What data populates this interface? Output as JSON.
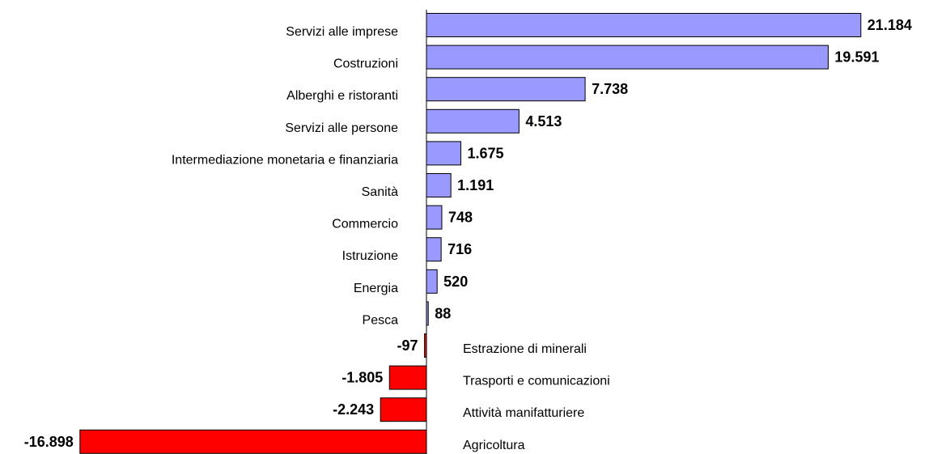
{
  "chart_data": {
    "type": "hbar",
    "categories": [
      "Servizi alle imprese",
      "Costruzioni",
      "Alberghi e ristoranti",
      "Servizi alle persone",
      "Intermediazione monetaria e finanziaria",
      "Sanità",
      "Commercio",
      "Istruzione",
      "Energia",
      "Pesca",
      "Estrazione di minerali",
      "Trasporti e comunicazioni",
      "Attività manifatturiere",
      "Agricoltura"
    ],
    "values": [
      21184,
      19591,
      7738,
      4513,
      1675,
      1191,
      748,
      716,
      520,
      88,
      -97,
      -1805,
      -2243,
      -16898
    ],
    "value_labels": [
      "21.184",
      "19.591",
      "7.738",
      "4.513",
      "1.675",
      "1.191",
      "748",
      "716",
      "520",
      "88",
      "-97",
      "-1.805",
      "-2.243",
      "-16.898"
    ],
    "colors": {
      "positive": "#9999ff",
      "negative": "#ff0000"
    }
  }
}
